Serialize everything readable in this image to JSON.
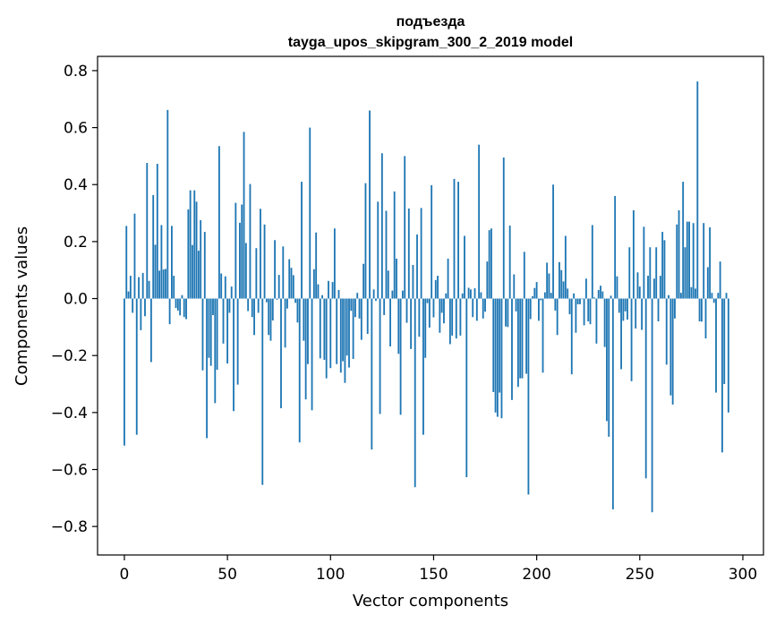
{
  "chart_data": {
    "type": "bar",
    "title_line1": "подъезда",
    "title_line2": "tayga_upos_skipgram_300_2_2019 model",
    "xlabel": "Vector components",
    "ylabel": "Components values",
    "xlim": [
      -13,
      310
    ],
    "ylim": [
      -0.9,
      0.85
    ],
    "xticks": [
      0,
      50,
      100,
      150,
      200,
      250,
      300
    ],
    "xtick_labels": [
      "0",
      "50",
      "100",
      "150",
      "200",
      "250",
      "300"
    ],
    "yticks": [
      -0.8,
      -0.6,
      -0.4,
      -0.2,
      0.0,
      0.2,
      0.4,
      0.6,
      0.8
    ],
    "ytick_labels": [
      "−0.8",
      "−0.6",
      "−0.4",
      "−0.2",
      "0.0",
      "0.2",
      "0.4",
      "0.6",
      "0.8"
    ],
    "bar_color": "#1f77b4",
    "values": [
      -0.516,
      0.255,
      0.025,
      0.08,
      -0.05,
      0.298,
      -0.478,
      0.075,
      -0.111,
      0.09,
      -0.062,
      0.476,
      0.062,
      -0.223,
      0.363,
      0.189,
      0.473,
      0.098,
      0.258,
      0.102,
      0.104,
      0.662,
      -0.09,
      0.255,
      0.08,
      -0.033,
      -0.042,
      -0.059,
      0.012,
      -0.065,
      -0.072,
      0.313,
      0.38,
      0.188,
      0.38,
      0.34,
      0.168,
      0.275,
      -0.252,
      0.234,
      -0.49,
      -0.208,
      -0.236,
      -0.058,
      -0.367,
      -0.25,
      0.535,
      0.088,
      -0.158,
      0.078,
      -0.228,
      -0.05,
      0.042,
      -0.395,
      0.336,
      -0.302,
      0.266,
      0.33,
      0.585,
      0.195,
      -0.044,
      0.402,
      -0.065,
      -0.128,
      0.177,
      -0.05,
      0.315,
      -0.654,
      0.26,
      -0.013,
      -0.128,
      -0.148,
      -0.077,
      0.205,
      -0.004,
      0.083,
      -0.385,
      0.183,
      -0.172,
      -0.035,
      0.138,
      0.108,
      0.082,
      -0.015,
      -0.084,
      -0.505,
      0.41,
      -0.148,
      -0.354,
      -0.23,
      0.6,
      -0.392,
      0.103,
      0.232,
      0.05,
      -0.21,
      0.012,
      -0.215,
      -0.28,
      0.062,
      -0.244,
      0.058,
      0.246,
      -0.23,
      0.03,
      -0.26,
      -0.22,
      -0.296,
      -0.2,
      -0.242,
      -0.043,
      -0.212,
      -0.065,
      0.02,
      -0.07,
      -0.145,
      0.122,
      0.405,
      -0.124,
      0.66,
      -0.53,
      0.032,
      -0.008,
      0.34,
      -0.405,
      0.51,
      -0.058,
      0.308,
      0.098,
      -0.168,
      0.028,
      0.376,
      0.14,
      -0.194,
      -0.408,
      0.028,
      0.5,
      -0.085,
      0.316,
      -0.177,
      0.118,
      -0.662,
      0.225,
      -0.134,
      0.318,
      -0.478,
      -0.208,
      -0.016,
      -0.102,
      0.398,
      -0.066,
      0.065,
      0.08,
      -0.12,
      -0.05,
      -0.087,
      0.018,
      0.14,
      -0.16,
      -0.13,
      0.42,
      -0.14,
      0.41,
      -0.13,
      0.018,
      0.22,
      -0.627,
      0.038,
      0.032,
      -0.065,
      0.036,
      -0.078,
      0.54,
      0.022,
      -0.07,
      -0.046,
      0.13,
      0.24,
      0.246,
      -0.328,
      -0.4,
      -0.415,
      -0.33,
      -0.42,
      0.495,
      -0.098,
      -0.1,
      0.256,
      -0.356,
      0.085,
      -0.045,
      -0.31,
      -0.28,
      -0.28,
      0.164,
      -0.264,
      -0.688,
      -0.072,
      0.008,
      0.037,
      0.058,
      -0.078,
      -0.006,
      -0.26,
      0.022,
      0.126,
      0.088,
      0.02,
      0.4,
      -0.042,
      -0.128,
      0.128,
      0.1,
      0.06,
      0.22,
      0.035,
      -0.055,
      -0.266,
      0.018,
      -0.12,
      -0.02,
      -0.02,
      -0.002,
      -0.094,
      0.07,
      -0.08,
      -0.09,
      0.258,
      0.004,
      -0.158,
      0.03,
      0.045,
      0.025,
      -0.17,
      -0.43,
      -0.485,
      0.01,
      -0.74,
      0.36,
      0.078,
      -0.05,
      -0.248,
      -0.078,
      -0.045,
      -0.074,
      0.18,
      -0.29,
      0.31,
      -0.105,
      0.092,
      0.042,
      -0.11,
      0.252,
      -0.631,
      0.08,
      0.18,
      -0.75,
      0.07,
      0.18,
      -0.08,
      0.08,
      0.234,
      0.205,
      -0.232,
      0.012,
      -0.34,
      -0.372,
      -0.07,
      0.26,
      0.31,
      0.02,
      0.41,
      0.18,
      0.27,
      0.27,
      0.04,
      0.265,
      0.035,
      0.762,
      -0.08,
      -0.081,
      0.265,
      -0.14,
      0.11,
      0.25,
      0.02,
      -0.015,
      -0.33,
      0.02,
      0.13,
      -0.54,
      -0.3,
      0.02,
      -0.4
    ]
  }
}
